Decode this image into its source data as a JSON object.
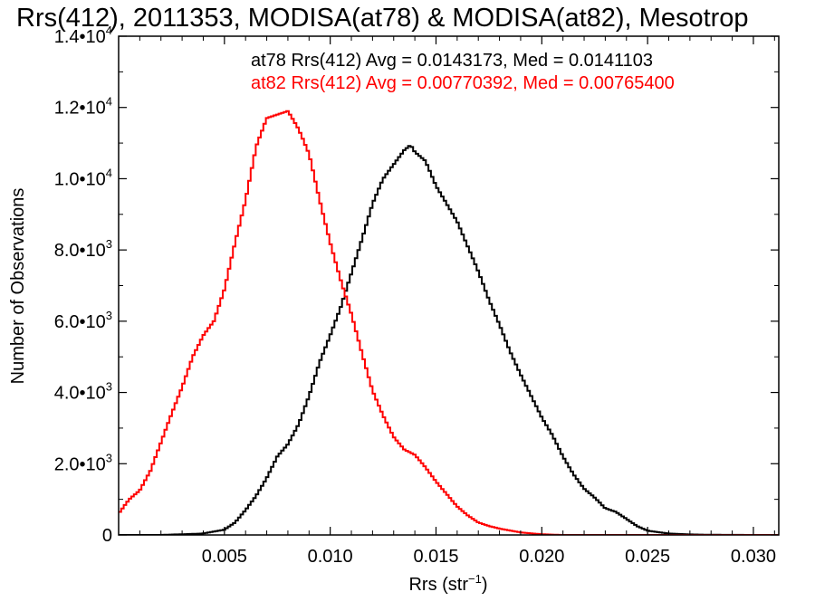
{
  "chart_data": {
    "type": "line",
    "title": "Rrs(412), 2011353, MODISA(at78) & MODISA(at82), Mesotrop",
    "xlabel": "Rrs (str⁻¹)",
    "ylabel": "Number of Observations",
    "xlim": [
      0.0,
      0.0312
    ],
    "ylim": [
      0,
      14000
    ],
    "x_ticks": [
      0.005,
      0.01,
      0.015,
      0.02,
      0.025,
      0.03
    ],
    "x_tick_labels": [
      "0.005",
      "0.010",
      "0.015",
      "0.020",
      "0.025",
      "0.030"
    ],
    "y_ticks": [
      0,
      2000,
      4000,
      6000,
      8000,
      10000,
      12000,
      14000
    ],
    "y_tick_labels": [
      {
        "mantissa": "0",
        "exponent": ""
      },
      {
        "mantissa": "2.0•10",
        "exponent": "3"
      },
      {
        "mantissa": "4.0•10",
        "exponent": "3"
      },
      {
        "mantissa": "6.0•10",
        "exponent": "3"
      },
      {
        "mantissa": "8.0•10",
        "exponent": "3"
      },
      {
        "mantissa": "1.0•10",
        "exponent": "4"
      },
      {
        "mantissa": "1.2•10",
        "exponent": "4"
      },
      {
        "mantissa": "1.4•10",
        "exponent": "4"
      }
    ],
    "grid": false,
    "legend_placement": "top-right",
    "series": [
      {
        "name": "at78",
        "color": "#000000",
        "annotation": "at78 Rrs(412) Avg = 0.0143173, Med = 0.0141103",
        "x": [
          0.002,
          0.004,
          0.005,
          0.0055,
          0.006,
          0.0065,
          0.007,
          0.0075,
          0.008,
          0.0085,
          0.009,
          0.0095,
          0.01,
          0.0105,
          0.011,
          0.0115,
          0.012,
          0.0125,
          0.013,
          0.0135,
          0.0138,
          0.014,
          0.0145,
          0.015,
          0.0155,
          0.016,
          0.0165,
          0.017,
          0.0175,
          0.018,
          0.0185,
          0.019,
          0.0195,
          0.02,
          0.0205,
          0.021,
          0.0215,
          0.022,
          0.0225,
          0.023,
          0.0235,
          0.024,
          0.0245,
          0.025,
          0.026,
          0.027,
          0.028,
          0.03,
          0.0312
        ],
        "y": [
          0,
          40,
          150,
          350,
          700,
          1100,
          1600,
          2200,
          2550,
          3100,
          3900,
          4850,
          5600,
          6400,
          7350,
          8300,
          9300,
          10000,
          10400,
          10800,
          10950,
          10750,
          10500,
          9800,
          9300,
          8800,
          8100,
          7400,
          6600,
          5900,
          5150,
          4500,
          3900,
          3300,
          2800,
          2200,
          1700,
          1300,
          1050,
          750,
          650,
          450,
          250,
          120,
          40,
          15,
          5,
          0,
          0
        ]
      },
      {
        "name": "at82",
        "color": "#ff0000",
        "annotation": "at82 Rrs(412) Avg = 0.00770392, Med = 0.00765400",
        "x": [
          0.0,
          0.0005,
          0.001,
          0.0015,
          0.002,
          0.0025,
          0.003,
          0.0035,
          0.004,
          0.0045,
          0.005,
          0.0055,
          0.006,
          0.0065,
          0.007,
          0.0075,
          0.008,
          0.0085,
          0.009,
          0.0095,
          0.01,
          0.0105,
          0.011,
          0.0115,
          0.012,
          0.0125,
          0.013,
          0.0135,
          0.014,
          0.0145,
          0.015,
          0.0155,
          0.016,
          0.0165,
          0.017,
          0.0175,
          0.018,
          0.019,
          0.02,
          0.021,
          0.022,
          0.024,
          0.026,
          0.0312
        ],
        "y": [
          600,
          1000,
          1250,
          1800,
          2600,
          3400,
          4150,
          5000,
          5600,
          6000,
          6900,
          8200,
          9400,
          10900,
          11700,
          11800,
          11900,
          11400,
          10700,
          9400,
          8200,
          7150,
          6200,
          5100,
          4050,
          3350,
          2750,
          2400,
          2250,
          1900,
          1500,
          1150,
          800,
          550,
          350,
          250,
          180,
          70,
          20,
          0,
          0,
          0,
          0,
          0
        ]
      }
    ]
  }
}
